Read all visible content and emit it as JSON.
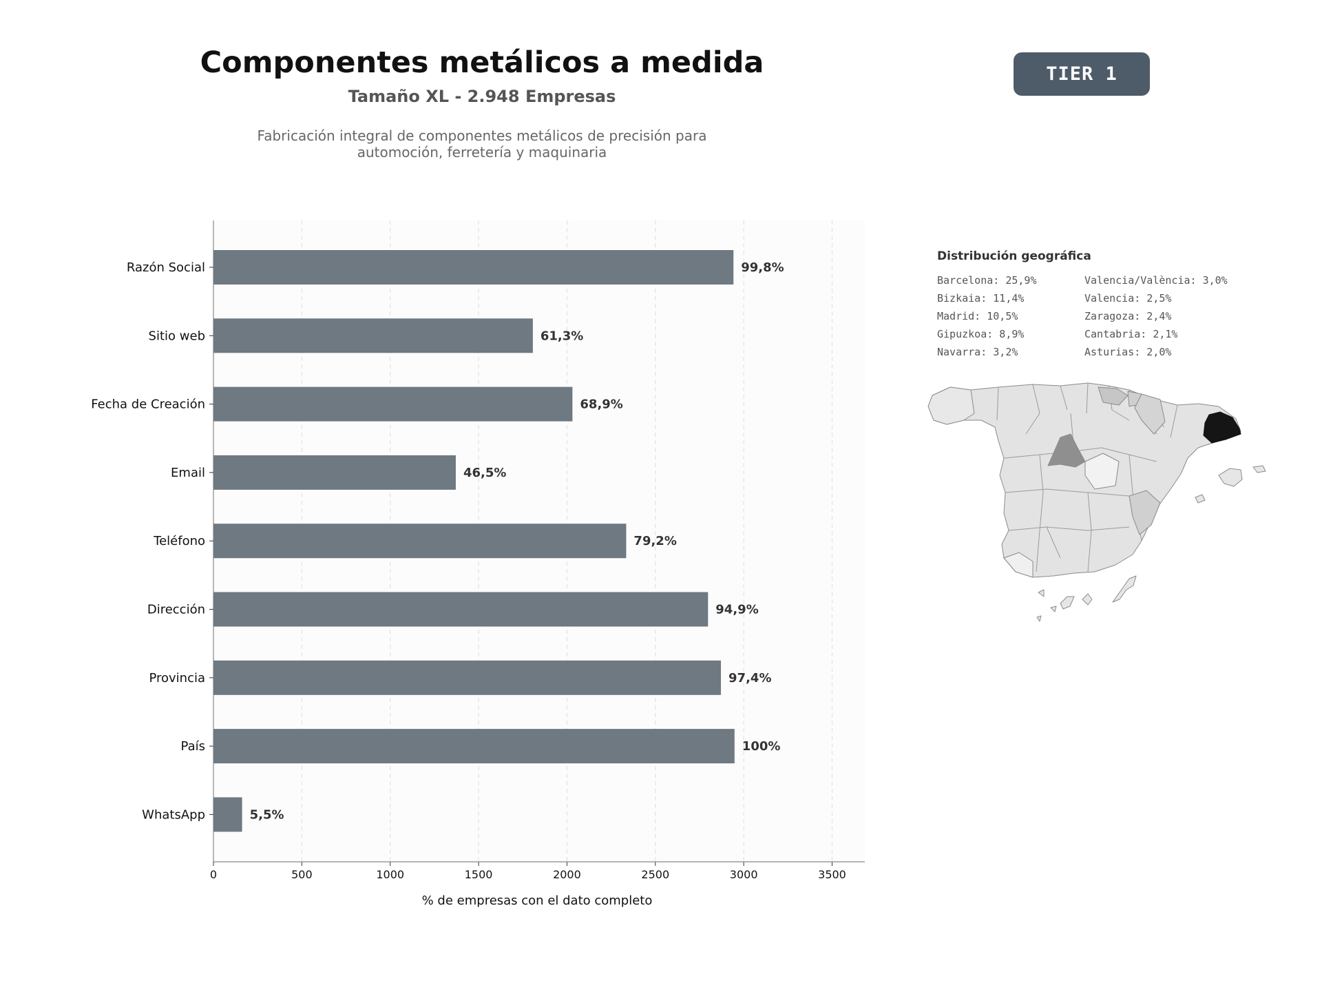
{
  "header": {
    "title": "Componentes metálicos a medida",
    "subtitle": "Tamaño XL - 2.948 Empresas",
    "description_line1": "Fabricación integral de componentes metálicos de precisión para",
    "description_line2": "automoción, ferretería y maquinaria",
    "badge": "TIER 1"
  },
  "chart_data": {
    "type": "bar",
    "orientation": "horizontal",
    "categories": [
      "Razón Social",
      "Sitio web",
      "Fecha de Creación",
      "Email",
      "Teléfono",
      "Dirección",
      "Provincia",
      "País",
      "WhatsApp"
    ],
    "values": [
      2942,
      1807,
      2031,
      1371,
      2335,
      2798,
      2871,
      2948,
      162
    ],
    "data_labels": [
      "99,8%",
      "61,3%",
      "68,9%",
      "46,5%",
      "79,2%",
      "94,9%",
      "97,4%",
      "100%",
      "5,5%"
    ],
    "xlabel": "% de empresas con el dato completo",
    "xticks": [
      "0",
      "500",
      "1000",
      "1500",
      "2000",
      "2500",
      "3000",
      "3500"
    ],
    "xlim": [
      0,
      3685
    ],
    "grid": "vertical dashed",
    "bar_color": "#6e7981"
  },
  "geo": {
    "title": "Distribución geográfica",
    "items": [
      "Barcelona: 25,9%",
      "Valencia/València: 3,0%",
      "Bizkaia: 11,4%",
      "Valencia: 2,5%",
      "Madrid: 10,5%",
      "Zaragoza: 2,4%",
      "Gipuzkoa: 8,9%",
      "Cantabria: 2,1%",
      "Navarra: 3,2%",
      "Asturias: 2,0%"
    ]
  }
}
